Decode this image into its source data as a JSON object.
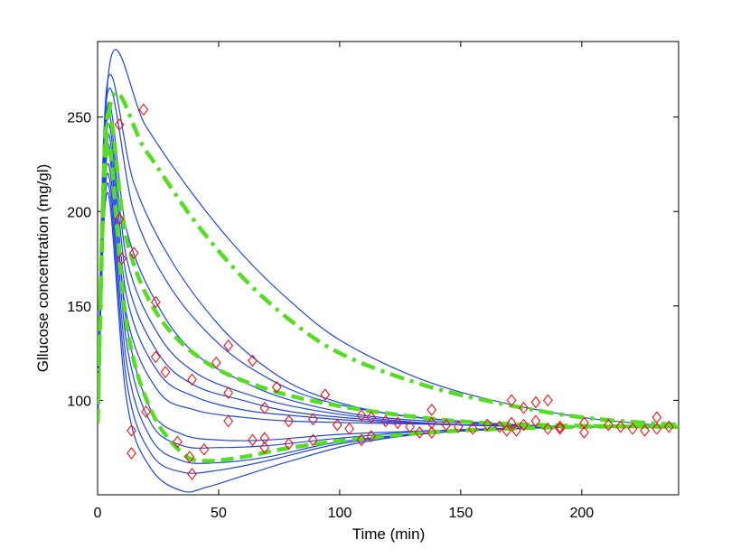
{
  "chart_data": {
    "type": "line",
    "xlabel": "Time (min)",
    "ylabel": "Gllucose concentration (mg/gl)",
    "xlim": [
      0,
      240
    ],
    "ylim": [
      50,
      290
    ],
    "xticks": [
      0,
      50,
      100,
      150,
      200
    ],
    "yticks": [
      100,
      150,
      200,
      250
    ],
    "grid": false,
    "colors": {
      "model": "#1f44e6",
      "mean": "#55dd22",
      "obs": "#ee1111"
    },
    "model_curves": [
      [
        [
          0,
          88
        ],
        [
          5,
          278
        ],
        [
          20,
          245
        ],
        [
          40,
          208
        ],
        [
          60,
          177
        ],
        [
          80,
          152
        ],
        [
          100,
          132
        ],
        [
          130,
          113
        ],
        [
          160,
          101
        ],
        [
          200,
          91
        ],
        [
          240,
          86
        ]
      ],
      [
        [
          0,
          88
        ],
        [
          4,
          268
        ],
        [
          15,
          215
        ],
        [
          30,
          175
        ],
        [
          50,
          140
        ],
        [
          70,
          117
        ],
        [
          90,
          103
        ],
        [
          120,
          93
        ],
        [
          160,
          88
        ],
        [
          200,
          86
        ],
        [
          240,
          86
        ]
      ],
      [
        [
          0,
          88
        ],
        [
          4,
          262
        ],
        [
          15,
          200
        ],
        [
          30,
          160
        ],
        [
          50,
          130
        ],
        [
          70,
          112
        ],
        [
          90,
          101
        ],
        [
          120,
          93
        ],
        [
          160,
          88
        ],
        [
          200,
          86
        ],
        [
          240,
          86
        ]
      ],
      [
        [
          0,
          88
        ],
        [
          4,
          255
        ],
        [
          12,
          190
        ],
        [
          25,
          150
        ],
        [
          40,
          125
        ],
        [
          60,
          110
        ],
        [
          80,
          100
        ],
        [
          110,
          92
        ],
        [
          150,
          88
        ],
        [
          200,
          86
        ],
        [
          240,
          86
        ]
      ],
      [
        [
          0,
          88
        ],
        [
          4,
          250
        ],
        [
          12,
          175
        ],
        [
          25,
          135
        ],
        [
          40,
          115
        ],
        [
          60,
          104
        ],
        [
          80,
          97
        ],
        [
          110,
          91
        ],
        [
          150,
          87
        ],
        [
          200,
          86
        ],
        [
          240,
          86
        ]
      ],
      [
        [
          0,
          88
        ],
        [
          4,
          245
        ],
        [
          12,
          165
        ],
        [
          25,
          125
        ],
        [
          40,
          108
        ],
        [
          60,
          100
        ],
        [
          80,
          94
        ],
        [
          110,
          90
        ],
        [
          150,
          87
        ],
        [
          200,
          86
        ],
        [
          240,
          86
        ]
      ],
      [
        [
          0,
          88
        ],
        [
          4,
          240
        ],
        [
          12,
          155
        ],
        [
          25,
          115
        ],
        [
          40,
          102
        ],
        [
          60,
          95
        ],
        [
          80,
          92
        ],
        [
          110,
          89
        ],
        [
          150,
          87
        ],
        [
          200,
          86
        ],
        [
          240,
          86
        ]
      ],
      [
        [
          0,
          88
        ],
        [
          4,
          235
        ],
        [
          12,
          145
        ],
        [
          25,
          105
        ],
        [
          40,
          95
        ],
        [
          60,
          91
        ],
        [
          80,
          89
        ],
        [
          110,
          88
        ],
        [
          150,
          87
        ],
        [
          200,
          86
        ],
        [
          240,
          86
        ]
      ],
      [
        [
          0,
          88
        ],
        [
          4,
          230
        ],
        [
          12,
          140
        ],
        [
          22,
          95
        ],
        [
          35,
          82
        ],
        [
          50,
          79
        ],
        [
          70,
          79
        ],
        [
          100,
          82
        ],
        [
          140,
          84
        ],
        [
          200,
          86
        ],
        [
          240,
          86
        ]
      ],
      [
        [
          0,
          88
        ],
        [
          4,
          225
        ],
        [
          12,
          130
        ],
        [
          22,
          88
        ],
        [
          35,
          76
        ],
        [
          50,
          75
        ],
        [
          70,
          76
        ],
        [
          100,
          80
        ],
        [
          140,
          84
        ],
        [
          200,
          86
        ],
        [
          240,
          86
        ]
      ],
      [
        [
          0,
          88
        ],
        [
          4,
          220
        ],
        [
          12,
          120
        ],
        [
          22,
          80
        ],
        [
          35,
          68
        ],
        [
          50,
          67
        ],
        [
          70,
          70
        ],
        [
          100,
          78
        ],
        [
          140,
          83
        ],
        [
          200,
          86
        ],
        [
          240,
          86
        ]
      ],
      [
        [
          0,
          88
        ],
        [
          4,
          215
        ],
        [
          12,
          110
        ],
        [
          22,
          72
        ],
        [
          35,
          62
        ],
        [
          50,
          63
        ],
        [
          70,
          68
        ],
        [
          100,
          77
        ],
        [
          140,
          83
        ],
        [
          200,
          86
        ],
        [
          240,
          86
        ]
      ],
      [
        [
          0,
          88
        ],
        [
          4,
          210
        ],
        [
          12,
          100
        ],
        [
          22,
          64
        ],
        [
          35,
          52
        ],
        [
          45,
          54
        ],
        [
          60,
          60
        ],
        [
          80,
          68
        ],
        [
          110,
          78
        ],
        [
          150,
          84
        ],
        [
          200,
          86
        ],
        [
          240,
          86
        ]
      ]
    ],
    "mean_curves": [
      {
        "style": "dashdot",
        "points": [
          [
            0,
            88
          ],
          [
            5,
            255
          ],
          [
            20,
            232
          ],
          [
            40,
            195
          ],
          [
            60,
            165
          ],
          [
            80,
            142
          ],
          [
            100,
            125
          ],
          [
            130,
            110
          ],
          [
            160,
            100
          ],
          [
            200,
            91
          ],
          [
            240,
            87
          ]
        ]
      },
      {
        "style": "dashed",
        "points": [
          [
            0,
            88
          ],
          [
            4,
            250
          ],
          [
            12,
            185
          ],
          [
            25,
            145
          ],
          [
            45,
            120
          ],
          [
            70,
            106
          ],
          [
            100,
            97
          ],
          [
            140,
            90
          ],
          [
            180,
            87
          ],
          [
            240,
            86
          ]
        ]
      },
      {
        "style": "dashed",
        "points": [
          [
            0,
            88
          ],
          [
            4,
            235
          ],
          [
            12,
            140
          ],
          [
            22,
            95
          ],
          [
            35,
            72
          ],
          [
            45,
            68
          ],
          [
            60,
            70
          ],
          [
            80,
            75
          ],
          [
            110,
            80
          ],
          [
            150,
            84
          ],
          [
            200,
            86
          ],
          [
            240,
            86
          ]
        ]
      }
    ],
    "observations": [
      [
        9,
        246
      ],
      [
        19,
        254
      ],
      [
        9,
        196
      ],
      [
        10,
        175
      ],
      [
        15,
        178
      ],
      [
        24,
        152
      ],
      [
        24,
        123
      ],
      [
        28,
        115
      ],
      [
        20,
        94
      ],
      [
        14,
        84
      ],
      [
        14,
        72
      ],
      [
        33,
        78
      ],
      [
        39,
        111
      ],
      [
        39,
        61
      ],
      [
        38,
        70
      ],
      [
        44,
        74
      ],
      [
        49,
        120
      ],
      [
        54,
        129
      ],
      [
        54,
        104
      ],
      [
        54,
        89
      ],
      [
        64,
        121
      ],
      [
        64,
        79
      ],
      [
        69,
        96
      ],
      [
        69,
        80
      ],
      [
        69,
        75
      ],
      [
        74,
        107
      ],
      [
        79,
        89
      ],
      [
        79,
        77
      ],
      [
        89,
        79
      ],
      [
        89,
        90
      ],
      [
        94,
        103
      ],
      [
        99,
        87
      ],
      [
        104,
        85
      ],
      [
        109,
        92
      ],
      [
        109,
        79
      ],
      [
        113,
        91
      ],
      [
        113,
        81
      ],
      [
        119,
        89
      ],
      [
        124,
        88
      ],
      [
        129,
        86
      ],
      [
        133,
        83
      ],
      [
        138,
        95
      ],
      [
        138,
        88
      ],
      [
        138,
        83
      ],
      [
        144,
        87
      ],
      [
        149,
        86
      ],
      [
        155,
        85
      ],
      [
        161,
        87
      ],
      [
        166,
        86
      ],
      [
        169,
        84
      ],
      [
        171,
        100
      ],
      [
        171,
        88
      ],
      [
        173,
        84
      ],
      [
        176,
        96
      ],
      [
        176,
        87
      ],
      [
        181,
        99
      ],
      [
        181,
        89
      ],
      [
        186,
        100
      ],
      [
        186,
        85
      ],
      [
        191,
        86
      ],
      [
        191,
        85
      ],
      [
        201,
        83
      ],
      [
        201,
        88
      ],
      [
        211,
        87
      ],
      [
        216,
        86
      ],
      [
        221,
        85
      ],
      [
        226,
        84
      ],
      [
        231,
        91
      ],
      [
        231,
        85
      ],
      [
        236,
        86
      ]
    ]
  }
}
